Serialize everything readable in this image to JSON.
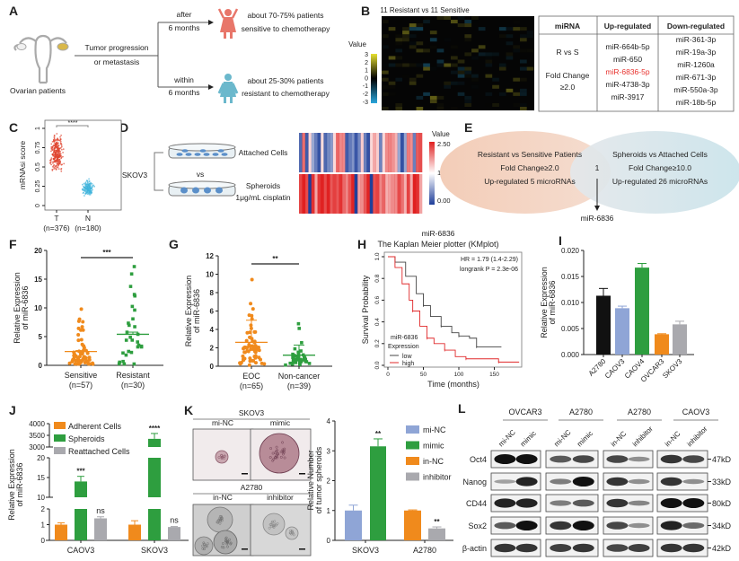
{
  "panels": [
    "A",
    "B",
    "C",
    "D",
    "E",
    "F",
    "G",
    "H",
    "I",
    "J",
    "K",
    "L"
  ],
  "a": {
    "ovarian": "Ovarian patients",
    "progression": [
      "Tumor progression",
      "or metastasis"
    ],
    "after": [
      "after",
      "6 months"
    ],
    "within": [
      "within",
      "6 months"
    ],
    "sensitive": [
      "about 70-75% patients",
      "sensitive to chemotherapy"
    ],
    "resistant": [
      "about 25-30% patients",
      "resistant to chemotherapy"
    ],
    "colors": {
      "sensitive_icon": "#e8766a",
      "resistant_icon": "#6bb8cc",
      "ovary": "#d9b84a"
    }
  },
  "b": {
    "heatmap_title": "11 Resistant  vs  11 Sensitive",
    "legend_title": "Value",
    "legend_ticks": [
      "3",
      "2",
      "1",
      "0",
      "-1",
      "-2",
      "-3"
    ],
    "colors": {
      "high": "#e6e030",
      "mid": "#000000",
      "low": "#2aa6dc"
    },
    "table": {
      "headers": [
        "miRNA",
        "Up-regulated",
        "Down-regulated"
      ],
      "criteria": [
        "R vs S",
        "Fold Change",
        "≥2.0"
      ],
      "up": [
        "miR-664b-5p",
        "miR-650",
        "miR-6836-5p",
        "miR-4738-3p",
        "miR-3917"
      ],
      "down": [
        "miR-361-3p",
        "miR-19a-3p",
        "miR-1260a",
        "miR-671-3p",
        "miR-550a-3p",
        "miR-18b-5p"
      ],
      "highlight_color": "#e8322e"
    }
  },
  "d": {
    "cell_line": "SKOV3",
    "vs": "vs",
    "attached": "Attached Cells",
    "spheroids": [
      "Spheroids",
      "1μg/mL cisplatin"
    ],
    "legend_title": "Value",
    "legend_ticks": [
      "2.50",
      "1.25",
      "0.00"
    ],
    "colors": {
      "high": "#e02020",
      "mid": "#ffffff",
      "low": "#1f3f9a"
    }
  },
  "e": {
    "left": [
      "Resistant vs Sensitive Patients",
      "Fold Change≥2.0",
      "Up-regulated 5 microRNAs"
    ],
    "right": [
      "Spheroids vs Attached Cells",
      "Fold Change≥10.0",
      "Up-regulated 26 microRNAs"
    ],
    "overlap": "1",
    "result": "miR-6836"
  },
  "k": {
    "top_line": "SKOV3",
    "top_conditions": [
      "mi-NC",
      "mimic"
    ],
    "bottom_line": "A2780",
    "bottom_conditions": [
      "in-NC",
      "inhibitor"
    ]
  },
  "l": {
    "groups": [
      {
        "line": "OVCAR3",
        "lanes": [
          "mi-NC",
          "mimic"
        ]
      },
      {
        "line": "A2780",
        "lanes": [
          "mi-NC",
          "mimic"
        ]
      },
      {
        "line": "A2780",
        "lanes": [
          "in-NC",
          "inhibitor"
        ]
      },
      {
        "line": "CAOV3",
        "lanes": [
          "in-NC",
          "inhibitor"
        ]
      }
    ],
    "proteins": [
      "Oct4",
      "Nanog",
      "CD44",
      "Sox2",
      "β-actin"
    ],
    "sizes": [
      "47kD",
      "33kD",
      "80kD",
      "34kD",
      "42kD"
    ]
  },
  "chart_data": [
    {
      "panel": "C",
      "type": "scatter",
      "ylabel": "mRNAsi score",
      "yticks": [
        "0",
        "0.25",
        "0.5",
        "0.75",
        "1"
      ],
      "ylim": [
        0,
        1
      ],
      "categories": [
        "T",
        "N"
      ],
      "counts": [
        "(n=376)",
        "(n=180)"
      ],
      "approx_range": [
        [
          0.4,
          0.95
        ],
        [
          0.1,
          0.35
        ]
      ],
      "significance": "****",
      "colors": [
        "#e0452f",
        "#3fb3dc"
      ]
    },
    {
      "panel": "F",
      "type": "scatter",
      "ylabel": [
        "Relative Expression",
        "of miR-6836"
      ],
      "yticks": [
        "0",
        "5",
        "10",
        "15",
        "20"
      ],
      "ylim": [
        0,
        20
      ],
      "categories": [
        "Sensitive",
        "Resistant"
      ],
      "counts": [
        "(n=57)",
        "(n=30)"
      ],
      "means": [
        2.4,
        5.4
      ],
      "max": [
        9.6,
        17
      ],
      "significance": "***",
      "colors": [
        "#f08a1c",
        "#2e9e3f"
      ]
    },
    {
      "panel": "G",
      "type": "scatter",
      "ylabel": [
        "Relative Expression",
        "of miR-6836"
      ],
      "yticks": [
        "0",
        "2",
        "4",
        "6",
        "8",
        "10",
        "12"
      ],
      "ylim": [
        0,
        12
      ],
      "categories": [
        "EOC",
        "Non-cancer"
      ],
      "counts": [
        "(n=65)",
        "(n=39)"
      ],
      "means": [
        2.6,
        1.2
      ],
      "sd_upper": [
        5.0,
        2.3
      ],
      "max": [
        9.3,
        4.5
      ],
      "significance": "**",
      "colors": [
        "#f08a1c",
        "#2e9e3f"
      ]
    },
    {
      "panel": "H",
      "type": "line",
      "title": [
        "miR-6836",
        "The Kaplan Meier plotter (KMplot)"
      ],
      "xlabel": "Time (months)",
      "ylabel": "Survival Probability",
      "xticks": [
        "0",
        "50",
        "100",
        "150"
      ],
      "yticks": [
        "0.0",
        "0.2",
        "0.4",
        "0.6",
        "0.8",
        "1.0"
      ],
      "xlim": [
        0,
        185
      ],
      "ylim": [
        0,
        1
      ],
      "stats": [
        "HR = 1.79 (1.4-2.29)",
        "longrank P = 2.3e-06"
      ],
      "legend_title": [
        "miR-6836",
        "Expression"
      ],
      "series": [
        {
          "name": "low",
          "color": "#444444",
          "points": [
            [
              0,
              1
            ],
            [
              10,
              0.95
            ],
            [
              25,
              0.82
            ],
            [
              40,
              0.66
            ],
            [
              50,
              0.55
            ],
            [
              60,
              0.45
            ],
            [
              75,
              0.36
            ],
            [
              90,
              0.3
            ],
            [
              100,
              0.27
            ],
            [
              115,
              0.25
            ],
            [
              125,
              0.17
            ],
            [
              160,
              0.17
            ]
          ]
        },
        {
          "name": "high",
          "color": "#e0282a",
          "points": [
            [
              0,
              1
            ],
            [
              10,
              0.9
            ],
            [
              20,
              0.75
            ],
            [
              30,
              0.6
            ],
            [
              35,
              0.5
            ],
            [
              45,
              0.36
            ],
            [
              55,
              0.25
            ],
            [
              65,
              0.2
            ],
            [
              80,
              0.14
            ],
            [
              95,
              0.08
            ],
            [
              110,
              0.06
            ],
            [
              155,
              0.06
            ],
            [
              156,
              0.03
            ],
            [
              185,
              0.03
            ]
          ]
        }
      ]
    },
    {
      "panel": "I",
      "type": "bar",
      "ylabel": [
        "Relative Expression",
        "of miR-6836"
      ],
      "yticks": [
        "0.000",
        "0.005",
        "0.010",
        "0.015",
        "0.020"
      ],
      "ylim": [
        0,
        0.02
      ],
      "categories": [
        "A2780",
        "CAOV3",
        "CAOV4",
        "OVCAR3",
        "SKOV3"
      ],
      "values": [
        0.0113,
        0.0089,
        0.0167,
        0.0039,
        0.0058
      ],
      "errors": [
        0.0014,
        0.0004,
        0.0008,
        0.0001,
        0.0006
      ],
      "colors": [
        "#111111",
        "#8fa5d6",
        "#2e9e3f",
        "#f08a1c",
        "#a9a9ae"
      ]
    },
    {
      "panel": "J",
      "type": "bar",
      "ylabel": [
        "Relative Expression",
        "of miR-6836"
      ],
      "yticks": [
        "0",
        "1",
        "2",
        "10",
        "15",
        "20",
        "3000",
        "3500",
        "4000"
      ],
      "broken_axis": [
        [
          0,
          2
        ],
        [
          10,
          20
        ],
        [
          3000,
          4000
        ]
      ],
      "categories": [
        "CAOV3",
        "SKOV3"
      ],
      "series": [
        {
          "name": "Adherent Cells",
          "color": "#f08a1c",
          "values": [
            1,
            1
          ],
          "errors": [
            0.12,
            0.25
          ]
        },
        {
          "name": "Spheroids",
          "color": "#2e9e3f",
          "values": [
            14,
            3350
          ],
          "errors": [
            1.3,
            230
          ]
        },
        {
          "name": "Reattached Cells",
          "color": "#a9a9ae",
          "values": [
            1.4,
            0.85
          ],
          "errors": [
            0.1,
            0.03
          ]
        }
      ],
      "significance": [
        [
          "",
          "***",
          "ns"
        ],
        [
          "",
          "****",
          "ns"
        ]
      ]
    },
    {
      "panel": "K",
      "type": "bar",
      "ylabel": [
        "Relative Number",
        "of tumor spheroids"
      ],
      "yticks": [
        "0",
        "1",
        "2",
        "3",
        "4"
      ],
      "ylim": [
        0,
        4
      ],
      "categories": [
        "SKOV3",
        "A2780"
      ],
      "series": [
        {
          "name": "mi-NC",
          "color": "#8fa5d6",
          "category": "SKOV3",
          "value": 1,
          "error": 0.18,
          "sig": ""
        },
        {
          "name": "mimic",
          "color": "#2e9e3f",
          "category": "SKOV3",
          "value": 3.15,
          "error": 0.25,
          "sig": "**"
        },
        {
          "name": "in-NC",
          "color": "#f08a1c",
          "category": "A2780",
          "value": 1,
          "error": 0.02,
          "sig": ""
        },
        {
          "name": "inhibitor",
          "color": "#a9a9ae",
          "category": "A2780",
          "value": 0.4,
          "error": 0.05,
          "sig": "**"
        }
      ]
    }
  ]
}
